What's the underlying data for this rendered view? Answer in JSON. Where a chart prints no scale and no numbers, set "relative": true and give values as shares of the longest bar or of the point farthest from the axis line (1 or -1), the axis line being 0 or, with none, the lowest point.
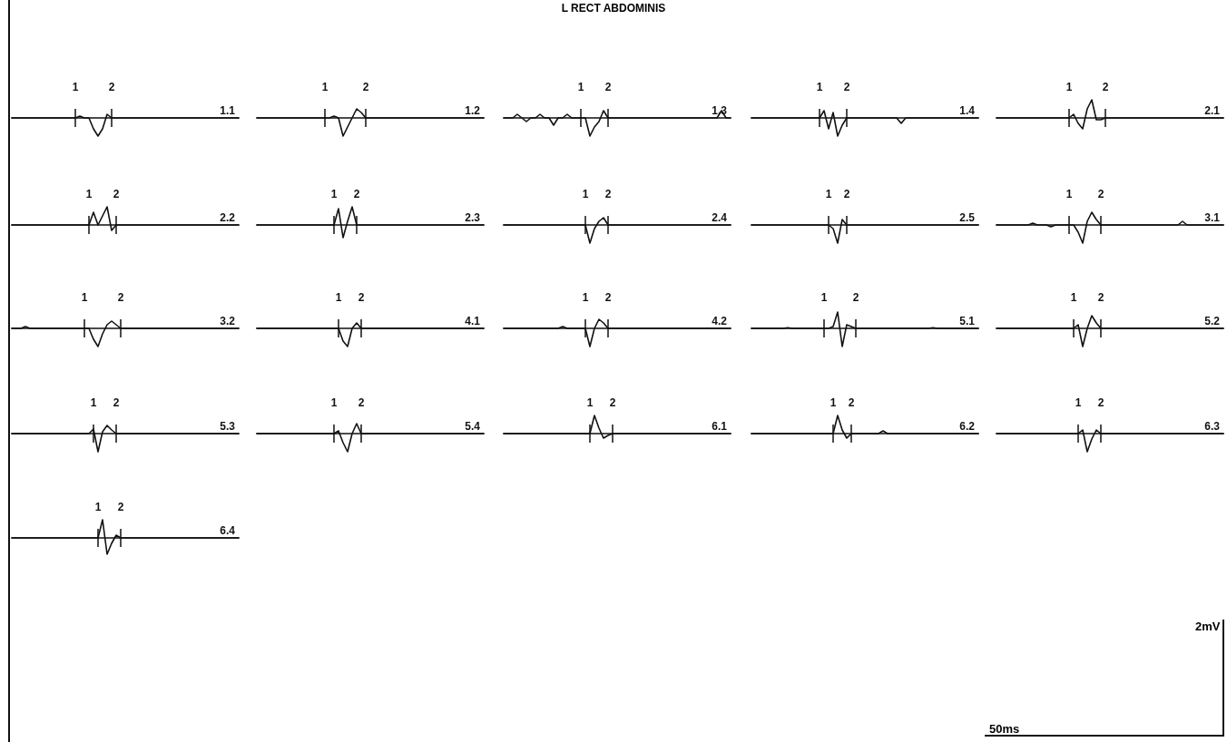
{
  "chart_data": [
    {
      "type": "line",
      "title": "1.1",
      "relative": true,
      "color": "#111111",
      "categories": [
        null,
        null,
        null,
        null,
        null,
        null,
        null,
        null,
        null,
        null,
        null,
        null,
        null,
        null,
        "1",
        null,
        null,
        null,
        null,
        null,
        null,
        null,
        "2",
        null,
        null,
        null,
        null,
        null,
        null,
        null,
        null,
        null,
        null,
        null,
        null,
        null,
        null,
        null,
        null,
        null,
        null,
        null,
        null,
        null,
        null,
        null,
        null,
        null,
        null,
        null,
        null
      ],
      "values": [
        0,
        0,
        0,
        0,
        0,
        0,
        0,
        0,
        0,
        0,
        0,
        0,
        0,
        0,
        0,
        0.1,
        0,
        0,
        -0.6,
        -1,
        -0.6,
        0.2,
        0,
        0,
        0,
        0,
        0,
        0,
        0,
        0,
        0,
        0,
        0,
        0,
        0,
        0,
        0,
        0,
        0,
        0,
        0,
        0,
        0,
        0,
        0,
        0,
        0,
        0,
        0,
        0,
        0
      ]
    },
    {
      "type": "line",
      "title": "1.2",
      "relative": true,
      "color": "#111111",
      "categories": [
        null,
        null,
        null,
        null,
        null,
        null,
        null,
        null,
        null,
        null,
        null,
        null,
        null,
        null,
        null,
        "1",
        null,
        null,
        null,
        null,
        null,
        null,
        null,
        null,
        "2",
        null,
        null,
        null,
        null,
        null,
        null,
        null,
        null,
        null,
        null,
        null,
        null,
        null,
        null,
        null,
        null,
        null,
        null,
        null,
        null,
        null,
        null,
        null,
        null,
        null,
        null
      ],
      "values": [
        0,
        0,
        0,
        0,
        0,
        0,
        0,
        0,
        0,
        0,
        0,
        0,
        0,
        0,
        0,
        0,
        0,
        0.1,
        0,
        -1,
        -0.5,
        0,
        0.5,
        0.3,
        0,
        0,
        0,
        0,
        0,
        0,
        0,
        0,
        0,
        0,
        0,
        0,
        0,
        0,
        0,
        0,
        0,
        0,
        0,
        0,
        0,
        0,
        0,
        0,
        0,
        0,
        0
      ]
    },
    {
      "type": "line",
      "title": "1.3",
      "relative": true,
      "color": "#111111",
      "categories": [
        null,
        null,
        null,
        null,
        null,
        null,
        null,
        null,
        null,
        null,
        null,
        null,
        null,
        null,
        null,
        null,
        null,
        "1",
        null,
        null,
        null,
        null,
        null,
        "2",
        null,
        null,
        null,
        null,
        null,
        null,
        null,
        null,
        null,
        null,
        null,
        null,
        null,
        null,
        null,
        null,
        null,
        null,
        null,
        null,
        null,
        null,
        null,
        null,
        null,
        null,
        null
      ],
      "values": [
        0,
        0,
        0,
        0.2,
        0,
        -0.2,
        0,
        0,
        0.2,
        0,
        0,
        -0.4,
        0,
        0,
        0.2,
        0,
        0,
        0,
        0,
        -1,
        -0.5,
        -0.2,
        0.4,
        0,
        0,
        0,
        0,
        0,
        0,
        0,
        0,
        0,
        0,
        0,
        0,
        0,
        0,
        0,
        0,
        0,
        0,
        0,
        0,
        0,
        0,
        0,
        0,
        0,
        0.4,
        0,
        0
      ]
    },
    {
      "type": "line",
      "title": "1.4",
      "relative": true,
      "color": "#111111",
      "categories": [
        null,
        null,
        null,
        null,
        null,
        null,
        null,
        null,
        null,
        null,
        null,
        null,
        null,
        null,
        null,
        "1",
        null,
        null,
        null,
        null,
        null,
        "2",
        null,
        null,
        null,
        null,
        null,
        null,
        null,
        null,
        null,
        null,
        null,
        null,
        null,
        null,
        null,
        null,
        null,
        null,
        null,
        null,
        null,
        null,
        null,
        null,
        null,
        null,
        null,
        null,
        null
      ],
      "values": [
        0,
        0,
        0,
        0,
        0,
        0,
        0,
        0,
        0,
        0,
        0,
        0,
        0,
        0,
        0,
        0,
        0.4,
        -0.6,
        0.3,
        -1,
        -0.4,
        0,
        0,
        0,
        0,
        0,
        0,
        0,
        0,
        0,
        0,
        0,
        0,
        -0.3,
        0,
        0,
        0,
        0,
        0,
        0,
        0,
        0,
        0,
        0,
        0,
        0,
        0,
        0,
        0,
        0,
        0
      ]
    },
    {
      "type": "line",
      "title": "2.1",
      "relative": true,
      "color": "#111111",
      "categories": [
        null,
        null,
        null,
        null,
        null,
        null,
        null,
        null,
        null,
        null,
        null,
        null,
        null,
        null,
        null,
        null,
        "1",
        null,
        null,
        null,
        null,
        null,
        null,
        null,
        "2",
        null,
        null,
        null,
        null,
        null,
        null,
        null,
        null,
        null,
        null,
        null,
        null,
        null,
        null,
        null,
        null,
        null,
        null,
        null,
        null,
        null,
        null,
        null,
        null,
        null,
        null
      ],
      "values": [
        0,
        0,
        0,
        0,
        0,
        0,
        0,
        0,
        0,
        0,
        0,
        0,
        0,
        0,
        0,
        0,
        0,
        0.2,
        -0.3,
        -0.6,
        0.5,
        1,
        -0.1,
        -0.1,
        0,
        0,
        0,
        0,
        0,
        0,
        0,
        0,
        0,
        0,
        0,
        0,
        0,
        0,
        0,
        0,
        0,
        0,
        0,
        0,
        0,
        0,
        0,
        0,
        0,
        0,
        0
      ]
    },
    {
      "type": "line",
      "title": "2.2",
      "relative": true,
      "color": "#111111",
      "categories": [
        null,
        null,
        null,
        null,
        null,
        null,
        null,
        null,
        null,
        null,
        null,
        null,
        null,
        null,
        null,
        null,
        null,
        "1",
        null,
        null,
        null,
        null,
        null,
        "2",
        null,
        null,
        null,
        null,
        null,
        null,
        null,
        null,
        null,
        null,
        null,
        null,
        null,
        null,
        null,
        null,
        null,
        null,
        null,
        null,
        null,
        null,
        null,
        null,
        null,
        null,
        null
      ],
      "values": [
        0,
        0,
        0,
        0,
        0,
        0,
        0,
        0,
        0,
        0,
        0,
        0,
        0,
        0,
        0,
        0,
        0,
        0,
        0.7,
        0,
        0.5,
        1,
        -0.3,
        0,
        0,
        0,
        0,
        0,
        0,
        0,
        0,
        0,
        0,
        0,
        0,
        0,
        0,
        0,
        0,
        0,
        0,
        0,
        0,
        0,
        0,
        0,
        0,
        0,
        0,
        0,
        0
      ]
    },
    {
      "type": "line",
      "title": "2.3",
      "relative": true,
      "color": "#111111",
      "categories": [
        null,
        null,
        null,
        null,
        null,
        null,
        null,
        null,
        null,
        null,
        null,
        null,
        null,
        null,
        null,
        null,
        null,
        "1",
        null,
        null,
        null,
        null,
        "2",
        null,
        null,
        null,
        null,
        null,
        null,
        null,
        null,
        null,
        null,
        null,
        null,
        null,
        null,
        null,
        null,
        null,
        null,
        null,
        null,
        null,
        null,
        null,
        null,
        null,
        null,
        null,
        null
      ],
      "values": [
        0,
        0,
        0,
        0,
        0,
        0,
        0,
        0,
        0,
        0,
        0,
        0,
        0,
        0,
        0,
        0,
        0,
        0,
        0.9,
        -0.7,
        0.2,
        1,
        0,
        0,
        0,
        0,
        0,
        0,
        0,
        0,
        0,
        0,
        0,
        0,
        0,
        0,
        0,
        0,
        0,
        0,
        0,
        0,
        0,
        0,
        0,
        0,
        0,
        0,
        0,
        0,
        0
      ]
    },
    {
      "type": "line",
      "title": "2.4",
      "relative": true,
      "color": "#111111",
      "categories": [
        null,
        null,
        null,
        null,
        null,
        null,
        null,
        null,
        null,
        null,
        null,
        null,
        null,
        null,
        null,
        null,
        null,
        null,
        "1",
        null,
        null,
        null,
        null,
        "2",
        null,
        null,
        null,
        null,
        null,
        null,
        null,
        null,
        null,
        null,
        null,
        null,
        null,
        null,
        null,
        null,
        null,
        null,
        null,
        null,
        null,
        null,
        null,
        null,
        null,
        null,
        null
      ],
      "values": [
        0,
        0,
        0,
        0,
        0,
        0,
        0,
        0,
        0,
        0,
        0,
        0,
        0,
        0,
        0,
        0,
        0,
        0,
        0,
        -1,
        -0.2,
        0.2,
        0.4,
        0,
        0,
        0,
        0,
        0,
        0,
        0,
        0,
        0,
        0,
        0,
        0,
        0,
        0,
        0,
        0,
        0,
        0,
        0,
        0,
        0,
        0,
        0,
        0,
        0,
        0,
        0,
        0
      ]
    },
    {
      "type": "line",
      "title": "2.5",
      "relative": true,
      "color": "#111111",
      "categories": [
        null,
        null,
        null,
        null,
        null,
        null,
        null,
        null,
        null,
        null,
        null,
        null,
        null,
        null,
        null,
        null,
        null,
        "1",
        null,
        null,
        null,
        "2",
        null,
        null,
        null,
        null,
        null,
        null,
        null,
        null,
        null,
        null,
        null,
        null,
        null,
        null,
        null,
        null,
        null,
        null,
        null,
        null,
        null,
        null,
        null,
        null,
        null,
        null,
        null,
        null,
        null
      ],
      "values": [
        0,
        0,
        0,
        0,
        0,
        0,
        0,
        0,
        0,
        0,
        0,
        0,
        0,
        0,
        0,
        0,
        0,
        0,
        -0.2,
        -1,
        0.3,
        0,
        0,
        0,
        0,
        0,
        0,
        0,
        0,
        0,
        0,
        0,
        0,
        0,
        0,
        0,
        0,
        0,
        0,
        0,
        0,
        0,
        0,
        0,
        0,
        0,
        0,
        0,
        0,
        0,
        0
      ]
    },
    {
      "type": "line",
      "title": "3.1",
      "relative": true,
      "color": "#111111",
      "categories": [
        null,
        null,
        null,
        null,
        null,
        null,
        null,
        null,
        null,
        null,
        null,
        null,
        null,
        null,
        null,
        null,
        "1",
        null,
        null,
        null,
        null,
        null,
        null,
        "2",
        null,
        null,
        null,
        null,
        null,
        null,
        null,
        null,
        null,
        null,
        null,
        null,
        null,
        null,
        null,
        null,
        null,
        null,
        null,
        null,
        null,
        null,
        null,
        null,
        null,
        null,
        null
      ],
      "values": [
        0,
        0,
        0,
        0,
        0,
        0,
        0,
        0,
        0.1,
        0,
        0,
        0,
        -0.1,
        0,
        0,
        0,
        0,
        0,
        -0.4,
        -1,
        0.2,
        0.7,
        0.3,
        0,
        0,
        0,
        0,
        0,
        0,
        0,
        0,
        0,
        0,
        0,
        0,
        0,
        0,
        0,
        0,
        0,
        0,
        0.2,
        0,
        0,
        0,
        0,
        0,
        0,
        0,
        0,
        0
      ]
    },
    {
      "type": "line",
      "title": "3.2",
      "relative": true,
      "color": "#111111",
      "categories": [
        null,
        null,
        null,
        null,
        null,
        null,
        null,
        null,
        null,
        null,
        null,
        null,
        null,
        null,
        null,
        null,
        "1",
        null,
        null,
        null,
        null,
        null,
        null,
        null,
        "2",
        null,
        null,
        null,
        null,
        null,
        null,
        null,
        null,
        null,
        null,
        null,
        null,
        null,
        null,
        null,
        null,
        null,
        null,
        null,
        null,
        null,
        null,
        null,
        null,
        null,
        null
      ],
      "values": [
        0,
        0,
        0,
        0.1,
        0,
        0,
        0,
        0,
        0,
        0,
        0,
        0,
        0,
        0,
        0,
        0,
        0,
        0,
        -0.6,
        -1,
        -0.3,
        0.2,
        0.4,
        0.2,
        0,
        0,
        0,
        0,
        0,
        0,
        0,
        0,
        0,
        0,
        0,
        0,
        0,
        0,
        0,
        0,
        0,
        0,
        0,
        0,
        0,
        0,
        0,
        0,
        0,
        0,
        0
      ]
    },
    {
      "type": "line",
      "title": "4.1",
      "relative": true,
      "color": "#111111",
      "categories": [
        null,
        null,
        null,
        null,
        null,
        null,
        null,
        null,
        null,
        null,
        null,
        null,
        null,
        null,
        null,
        null,
        null,
        null,
        "1",
        null,
        null,
        null,
        null,
        "2",
        null,
        null,
        null,
        null,
        null,
        null,
        null,
        null,
        null,
        null,
        null,
        null,
        null,
        null,
        null,
        null,
        null,
        null,
        null,
        null,
        null,
        null,
        null,
        null,
        null,
        null,
        null
      ],
      "values": [
        0,
        0,
        0,
        0,
        0,
        0,
        0,
        0,
        0,
        0,
        0,
        0,
        0,
        0,
        0,
        0,
        0,
        0,
        0,
        -0.7,
        -1,
        0,
        0.3,
        0,
        0,
        0,
        0,
        0,
        0,
        0,
        0,
        0,
        0,
        0,
        0,
        0,
        0,
        0,
        0,
        0,
        0,
        0,
        0,
        0,
        0,
        0,
        0,
        0,
        0,
        0,
        0
      ]
    },
    {
      "type": "line",
      "title": "4.2",
      "relative": true,
      "color": "#111111",
      "categories": [
        null,
        null,
        null,
        null,
        null,
        null,
        null,
        null,
        null,
        null,
        null,
        null,
        null,
        null,
        null,
        null,
        null,
        null,
        "1",
        null,
        null,
        null,
        null,
        "2",
        null,
        null,
        null,
        null,
        null,
        null,
        null,
        null,
        null,
        null,
        null,
        null,
        null,
        null,
        null,
        null,
        null,
        null,
        null,
        null,
        null,
        null,
        null,
        null,
        null,
        null,
        null
      ],
      "values": [
        0,
        0,
        0,
        0,
        0,
        0,
        0,
        0,
        0,
        0,
        0,
        0,
        0,
        0.1,
        0,
        0,
        0,
        0,
        0,
        -1,
        0,
        0.5,
        0.3,
        0,
        0,
        0,
        0,
        0,
        0,
        0,
        0,
        0,
        0,
        0,
        0,
        0,
        0,
        0,
        0,
        0,
        0,
        0,
        0,
        0,
        0,
        0,
        0,
        0,
        0,
        0,
        0
      ]
    },
    {
      "type": "line",
      "title": "5.1",
      "relative": true,
      "color": "#111111",
      "categories": [
        null,
        null,
        null,
        null,
        null,
        null,
        null,
        null,
        null,
        null,
        null,
        null,
        null,
        null,
        null,
        null,
        "1",
        null,
        null,
        null,
        null,
        null,
        null,
        "2",
        null,
        null,
        null,
        null,
        null,
        null,
        null,
        null,
        null,
        null,
        null,
        null,
        null,
        null,
        null,
        null,
        null,
        null,
        null,
        null,
        null,
        null,
        null,
        null,
        null,
        null,
        null
      ],
      "values": [
        0,
        0,
        0,
        0,
        0,
        0,
        0,
        0,
        0.04,
        0,
        0,
        0,
        0,
        0,
        0,
        0,
        0,
        0,
        0.1,
        0.9,
        -1,
        0.2,
        0.1,
        0,
        0,
        0,
        0,
        0,
        0,
        0,
        0,
        0,
        0,
        0,
        0,
        0,
        0,
        0,
        0,
        0,
        0.04,
        0,
        0,
        0,
        0,
        0,
        0,
        0,
        0,
        0,
        0
      ]
    },
    {
      "type": "line",
      "title": "5.2",
      "relative": true,
      "color": "#111111",
      "categories": [
        null,
        null,
        null,
        null,
        null,
        null,
        null,
        null,
        null,
        null,
        null,
        null,
        null,
        null,
        null,
        null,
        null,
        "1",
        null,
        null,
        null,
        null,
        null,
        "2",
        null,
        null,
        null,
        null,
        null,
        null,
        null,
        null,
        null,
        null,
        null,
        null,
        null,
        null,
        null,
        null,
        null,
        null,
        null,
        null,
        null,
        null,
        null,
        null,
        null,
        null,
        null
      ],
      "values": [
        0,
        0,
        0,
        0,
        0,
        0,
        0,
        0,
        0,
        0,
        0,
        0,
        0,
        0,
        0,
        0,
        0,
        0,
        0.2,
        -1,
        0,
        0.7,
        0.3,
        0,
        0,
        0,
        0,
        0,
        0,
        0,
        0,
        0,
        0,
        0,
        0,
        0,
        0,
        0,
        0,
        0,
        0,
        0,
        0,
        0,
        0,
        0,
        0,
        0,
        0,
        0,
        0
      ]
    },
    {
      "type": "line",
      "title": "5.3",
      "relative": true,
      "color": "#111111",
      "categories": [
        null,
        null,
        null,
        null,
        null,
        null,
        null,
        null,
        null,
        null,
        null,
        null,
        null,
        null,
        null,
        null,
        null,
        null,
        "1",
        null,
        null,
        null,
        null,
        "2",
        null,
        null,
        null,
        null,
        null,
        null,
        null,
        null,
        null,
        null,
        null,
        null,
        null,
        null,
        null,
        null,
        null,
        null,
        null,
        null,
        null,
        null,
        null,
        null,
        null,
        null,
        null
      ],
      "values": [
        0,
        0,
        0,
        0,
        0,
        0,
        0,
        0,
        0,
        0,
        0,
        0,
        0,
        0,
        0,
        0,
        0,
        0,
        0.25,
        -1,
        0.1,
        0.45,
        0.2,
        0,
        0,
        0,
        0,
        0,
        0,
        0,
        0,
        0,
        0,
        0,
        0,
        0,
        0,
        0,
        0,
        0,
        0,
        0,
        0,
        0,
        0,
        0,
        0,
        0,
        0,
        0,
        0
      ]
    },
    {
      "type": "line",
      "title": "5.4",
      "relative": true,
      "color": "#111111",
      "categories": [
        null,
        null,
        null,
        null,
        null,
        null,
        null,
        null,
        null,
        null,
        null,
        null,
        null,
        null,
        null,
        null,
        null,
        "1",
        null,
        null,
        null,
        null,
        null,
        "2",
        null,
        null,
        null,
        null,
        null,
        null,
        null,
        null,
        null,
        null,
        null,
        null,
        null,
        null,
        null,
        null,
        null,
        null,
        null,
        null,
        null,
        null,
        null,
        null,
        null,
        null,
        null
      ],
      "values": [
        0,
        0,
        0,
        0,
        0,
        0,
        0,
        0,
        0,
        0,
        0,
        0,
        0,
        0,
        0,
        0,
        0,
        0,
        0.15,
        -0.5,
        -1,
        0,
        0.55,
        0,
        0,
        0,
        0,
        0,
        0,
        0,
        0,
        0,
        0,
        0,
        0,
        0,
        0,
        0,
        0,
        0,
        0,
        0,
        0,
        0,
        0,
        0,
        0,
        0,
        0,
        0,
        0
      ]
    },
    {
      "type": "line",
      "title": "6.1",
      "relative": true,
      "color": "#111111",
      "categories": [
        null,
        null,
        null,
        null,
        null,
        null,
        null,
        null,
        null,
        null,
        null,
        null,
        null,
        null,
        null,
        null,
        null,
        null,
        null,
        "1",
        null,
        null,
        null,
        null,
        "2",
        null,
        null,
        null,
        null,
        null,
        null,
        null,
        null,
        null,
        null,
        null,
        null,
        null,
        null,
        null,
        null,
        null,
        null,
        null,
        null,
        null,
        null,
        null,
        null,
        null,
        null
      ],
      "values": [
        0,
        0,
        0,
        0,
        0,
        0,
        0,
        0,
        0,
        0,
        0,
        0,
        0,
        0,
        0,
        0,
        0,
        0,
        0,
        0,
        1,
        0.3,
        -0.25,
        -0.1,
        0,
        0,
        0,
        0,
        0,
        0,
        0,
        0,
        0,
        0,
        0,
        0,
        0,
        0,
        0,
        0,
        0,
        0,
        0,
        0,
        0,
        0,
        0,
        0,
        0,
        0,
        0
      ]
    },
    {
      "type": "line",
      "title": "6.2",
      "relative": true,
      "color": "#111111",
      "categories": [
        null,
        null,
        null,
        null,
        null,
        null,
        null,
        null,
        null,
        null,
        null,
        null,
        null,
        null,
        null,
        null,
        null,
        null,
        "1",
        null,
        null,
        null,
        "2",
        null,
        null,
        null,
        null,
        null,
        null,
        null,
        null,
        null,
        null,
        null,
        null,
        null,
        null,
        null,
        null,
        null,
        null,
        null,
        null,
        null,
        null,
        null,
        null,
        null,
        null,
        null,
        null
      ],
      "values": [
        0,
        0,
        0,
        0,
        0,
        0,
        0,
        0,
        0,
        0,
        0,
        0,
        0,
        0,
        0,
        0,
        0,
        0,
        0,
        1,
        0.2,
        -0.25,
        0,
        0,
        0,
        0,
        0,
        0,
        0,
        0.15,
        0,
        0,
        0,
        0,
        0,
        0,
        0,
        0,
        0,
        0,
        0,
        0,
        0,
        0,
        0,
        0,
        0,
        0,
        0,
        0,
        0
      ]
    },
    {
      "type": "line",
      "title": "6.3",
      "relative": true,
      "color": "#111111",
      "categories": [
        null,
        null,
        null,
        null,
        null,
        null,
        null,
        null,
        null,
        null,
        null,
        null,
        null,
        null,
        null,
        null,
        null,
        null,
        "1",
        null,
        null,
        null,
        null,
        "2",
        null,
        null,
        null,
        null,
        null,
        null,
        null,
        null,
        null,
        null,
        null,
        null,
        null,
        null,
        null,
        null,
        null,
        null,
        null,
        null,
        null,
        null,
        null,
        null,
        null,
        null,
        null
      ],
      "values": [
        0,
        0,
        0,
        0,
        0,
        0,
        0,
        0,
        0,
        0,
        0,
        0,
        0,
        0,
        0,
        0,
        0,
        0,
        0,
        0.2,
        -1,
        -0.3,
        0.2,
        0,
        0,
        0,
        0,
        0,
        0,
        0,
        0,
        0,
        0,
        0,
        0,
        0,
        0,
        0,
        0,
        0,
        0,
        0,
        0,
        0,
        0,
        0,
        0,
        0,
        0,
        0,
        0
      ]
    },
    {
      "type": "line",
      "title": "6.4",
      "relative": true,
      "color": "#111111",
      "categories": [
        null,
        null,
        null,
        null,
        null,
        null,
        null,
        null,
        null,
        null,
        null,
        null,
        null,
        null,
        null,
        null,
        null,
        null,
        null,
        "1",
        null,
        null,
        null,
        null,
        "2",
        null,
        null,
        null,
        null,
        null,
        null,
        null,
        null,
        null,
        null,
        null,
        null,
        null,
        null,
        null,
        null,
        null,
        null,
        null,
        null,
        null,
        null,
        null,
        null,
        null,
        null
      ],
      "values": [
        0,
        0,
        0,
        0,
        0,
        0,
        0,
        0,
        0,
        0,
        0,
        0,
        0,
        0,
        0,
        0,
        0,
        0,
        0,
        0,
        1,
        -0.9,
        -0.3,
        0.15,
        0,
        0,
        0,
        0,
        0,
        0,
        0,
        0,
        0,
        0,
        0,
        0,
        0,
        0,
        0,
        0,
        0,
        0,
        0,
        0,
        0,
        0,
        0,
        0,
        0,
        0,
        0
      ]
    },
    {
      "type": "other",
      "title": "L RECT ABDOMINIS",
      "annotations": [
        "50ms",
        "2mV"
      ]
    }
  ]
}
